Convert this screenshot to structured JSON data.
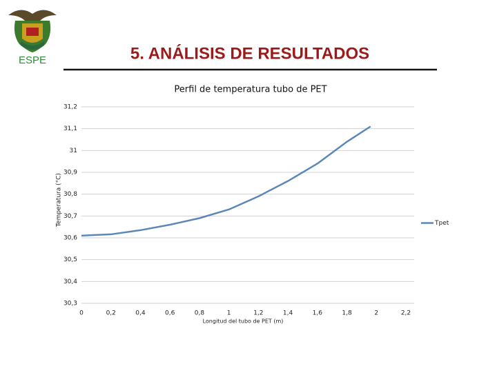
{
  "header": {
    "logo_text": "ESPE",
    "title": "5. ANÁLISIS DE RESULTADOS"
  },
  "chart_data": {
    "type": "line",
    "title": "Perfil de temperatura tubo de PET",
    "x_label": "Longitud del tubo de PET (m)",
    "y_label": "Temperatura (°C)",
    "x": [
      0,
      0.2,
      0.4,
      0.6,
      0.8,
      1.0,
      1.2,
      1.4,
      1.6,
      1.8,
      1.96
    ],
    "series": [
      {
        "name": "Tpet",
        "color": "#5b87b8",
        "values": [
          30.61,
          30.616,
          30.635,
          30.66,
          30.69,
          30.73,
          30.79,
          30.86,
          30.94,
          31.04,
          31.11
        ]
      }
    ],
    "xlim": [
      0,
      2.2
    ],
    "xticks": [
      0,
      {
        "value": 0.2,
        "label": "0,2"
      },
      {
        "value": 0.4,
        "label": "0,4"
      },
      {
        "value": 0.6,
        "label": "0,6"
      },
      {
        "value": 0.8,
        "label": "0,8"
      },
      1,
      {
        "value": 1.2,
        "label": "1,2"
      },
      {
        "value": 1.4,
        "label": "1,4"
      },
      {
        "value": 1.6,
        "label": "1,6"
      },
      {
        "value": 1.8,
        "label": "1,8"
      },
      2,
      {
        "value": 2.2,
        "label": "2,2"
      }
    ],
    "ylim": [
      30.3,
      31.2
    ],
    "yticks": [
      {
        "value": 30.3,
        "label": "30,3"
      },
      {
        "value": 30.4,
        "label": "30,4"
      },
      {
        "value": 30.5,
        "label": "30,5"
      },
      {
        "value": 30.6,
        "label": "30,6"
      },
      {
        "value": 30.7,
        "label": "30,7"
      },
      {
        "value": 30.8,
        "label": "30,8"
      },
      {
        "value": 30.9,
        "label": "30,9"
      },
      31,
      {
        "value": 31.1,
        "label": "31,1"
      },
      {
        "value": 31.2,
        "label": "31,2"
      }
    ],
    "grid": true,
    "legend": "right"
  }
}
